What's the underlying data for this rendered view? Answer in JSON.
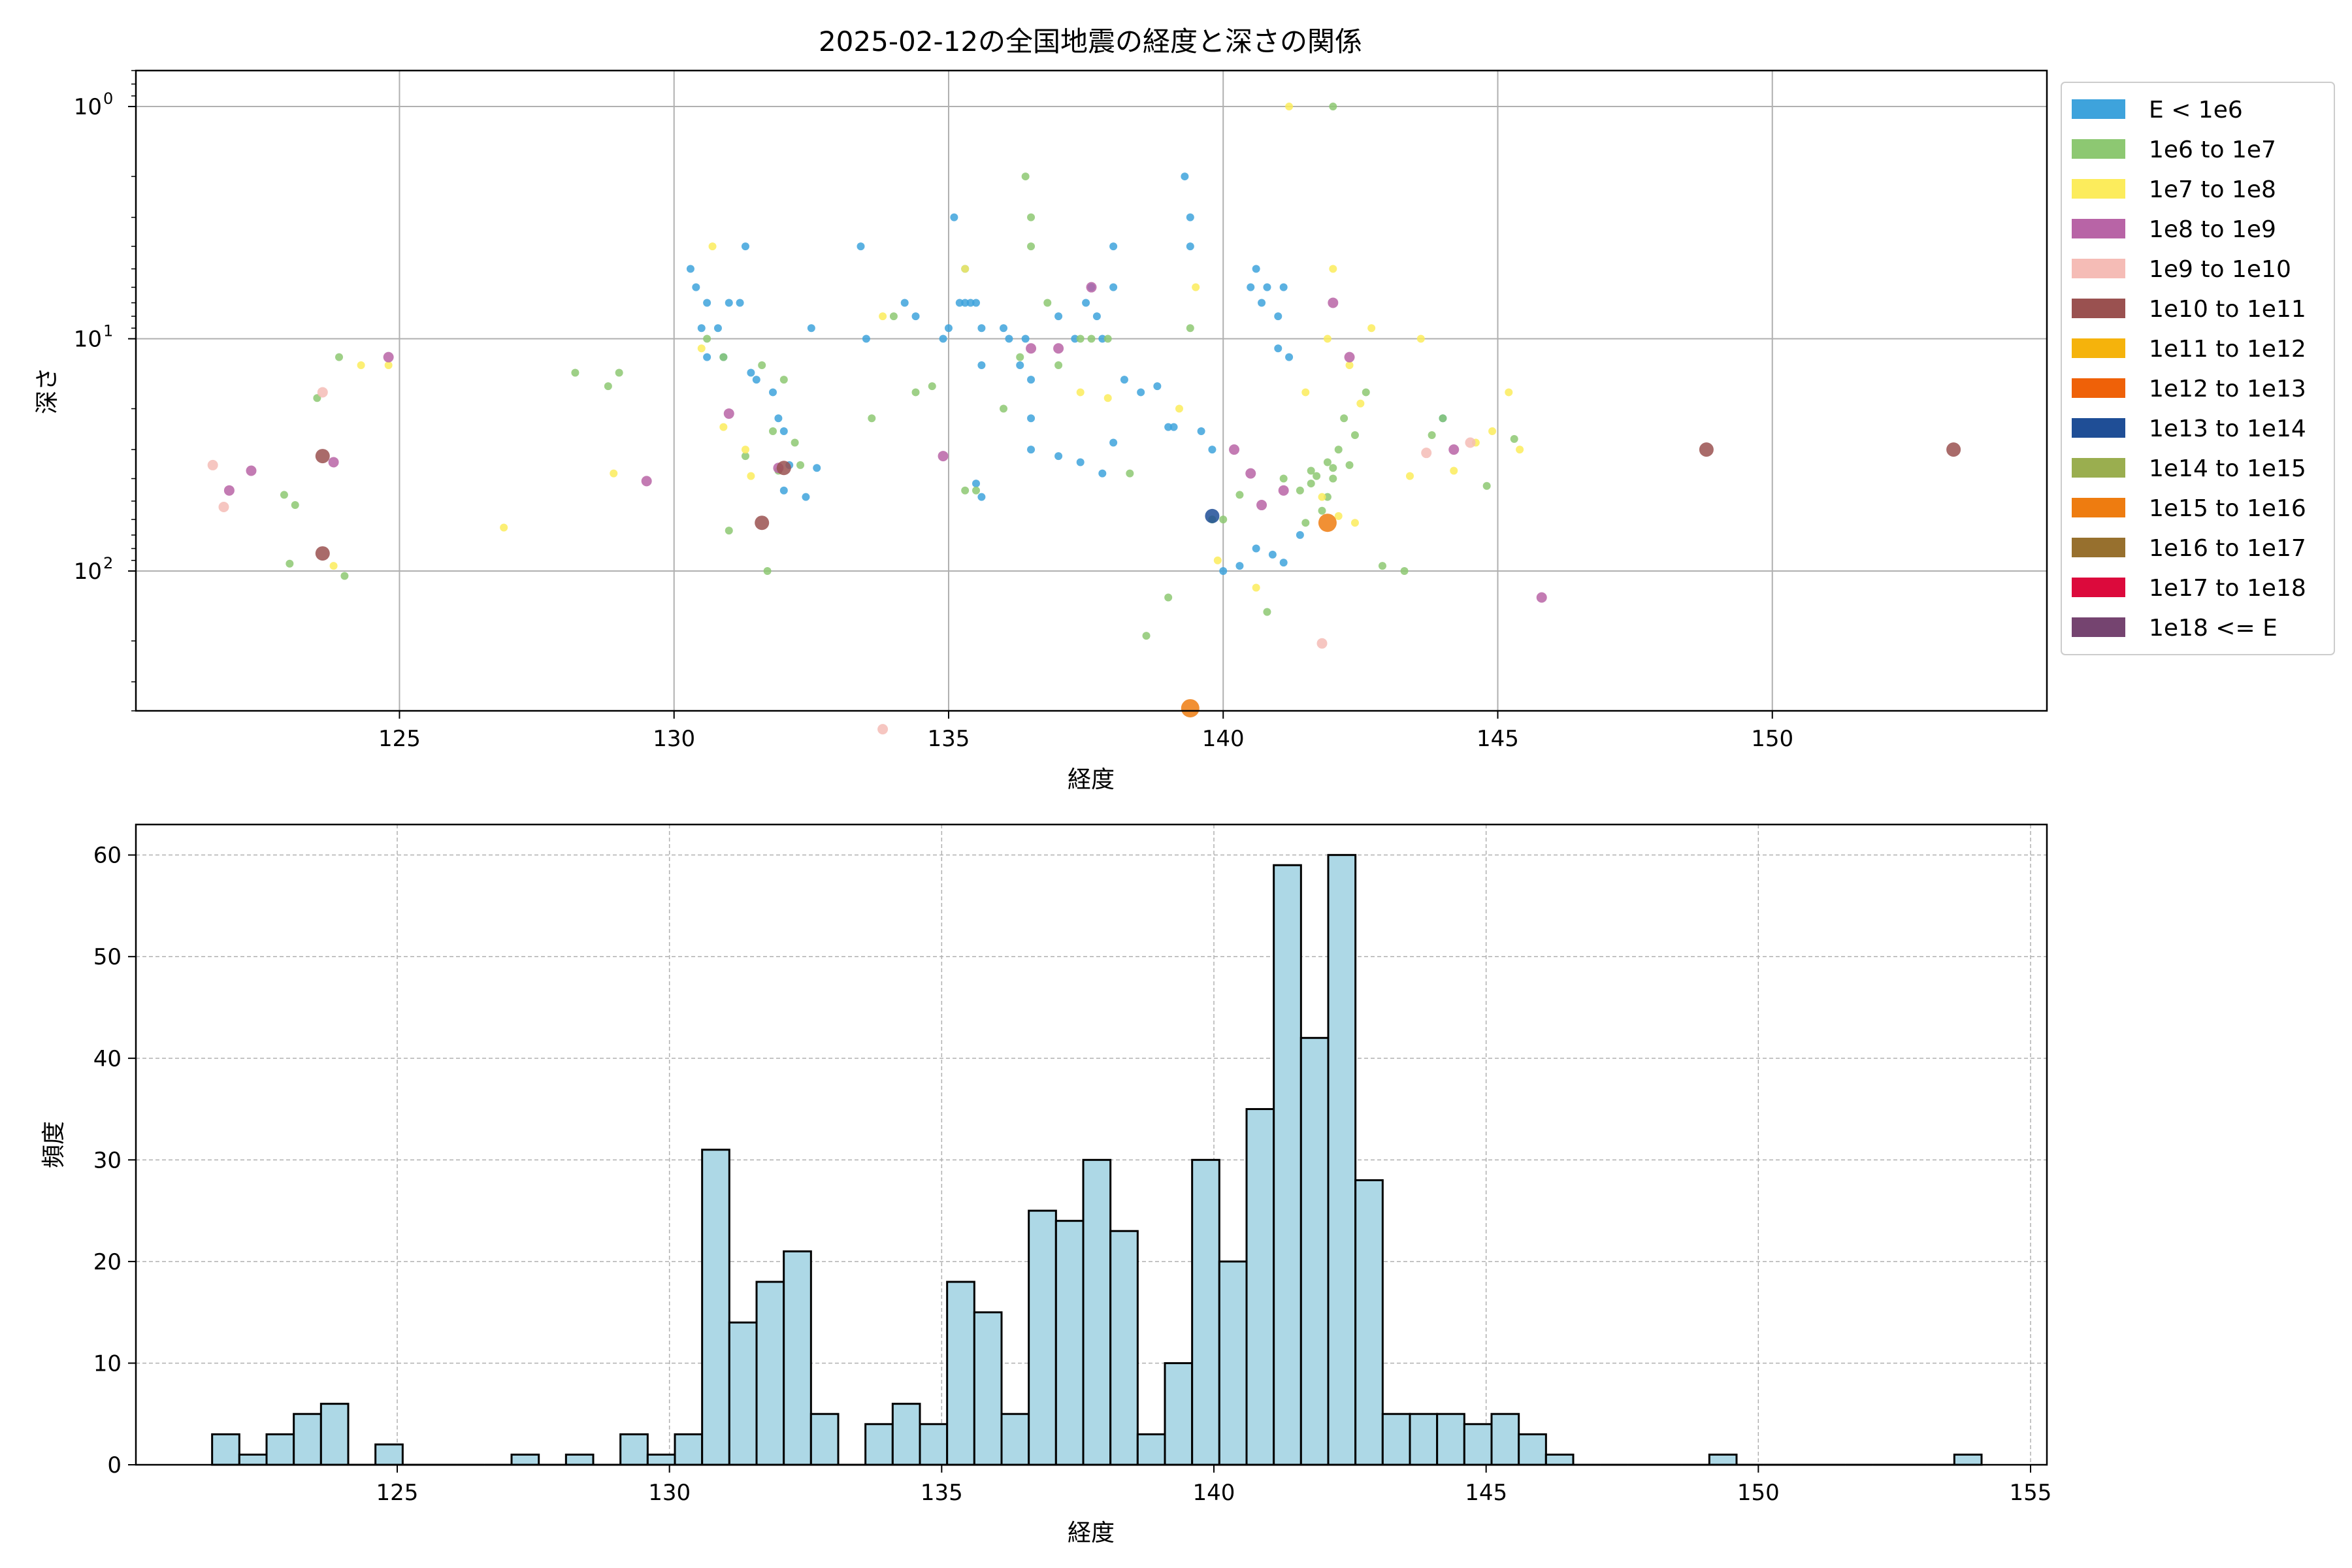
{
  "chart_data": [
    {
      "type": "scatter",
      "title": "2025-02-12の全国地震の経度と深さの関係",
      "xlabel": "経度",
      "ylabel": "深さ",
      "xlim": [
        120.2,
        155.0
      ],
      "ylim": [
        400,
        0.7
      ],
      "y_scale": "log",
      "y_inverted": true,
      "grid": true,
      "legend_position": "outside-right",
      "x_ticks": [
        125,
        130,
        135,
        140,
        145,
        150
      ],
      "y_ticks": [
        {
          "value": 1,
          "label": "10",
          "exp": "0"
        },
        {
          "value": 10,
          "label": "10",
          "exp": "1"
        },
        {
          "value": 100,
          "label": "10",
          "exp": "2"
        }
      ],
      "legend": [
        {
          "label": "E < 1e6",
          "color": "#3ea3dc"
        },
        {
          "label": "1e6 to 1e7",
          "color": "#8dc872"
        },
        {
          "label": "1e7 to 1e8",
          "color": "#fcec5c"
        },
        {
          "label": "1e8 to 1e9",
          "color": "#b864a6"
        },
        {
          "label": "1e9 to 1e10",
          "color": "#f5bcb6"
        },
        {
          "label": "1e10 to 1e11",
          "color": "#9a5150"
        },
        {
          "label": "1e11 to 1e12",
          "color": "#f5b30c"
        },
        {
          "label": "1e12 to 1e13",
          "color": "#ef6108"
        },
        {
          "label": "1e13 to 1e14",
          "color": "#1f4e96"
        },
        {
          "label": "1e14 to 1e15",
          "color": "#9aae4f"
        },
        {
          "label": "1e15 to 1e16",
          "color": "#ee7c10"
        },
        {
          "label": "1e16 to 1e17",
          "color": "#97702e"
        },
        {
          "label": "1e17 to 1e18",
          "color": "#dc0a3c"
        },
        {
          "label": "1e18 <= E",
          "color": "#754470"
        }
      ],
      "series": [
        {
          "class": 0,
          "points": [
            [
              130.3,
              5
            ],
            [
              130.4,
              6
            ],
            [
              130.6,
              7
            ],
            [
              130.5,
              9
            ],
            [
              130.8,
              9
            ],
            [
              131.0,
              7
            ],
            [
              131.2,
              7
            ],
            [
              131.3,
              4
            ],
            [
              130.6,
              12
            ],
            [
              130.9,
              12
            ],
            [
              131.4,
              14
            ],
            [
              131.5,
              15
            ],
            [
              131.8,
              17
            ],
            [
              131.9,
              22
            ],
            [
              132.0,
              25
            ],
            [
              132.1,
              35
            ],
            [
              132.4,
              48
            ],
            [
              132.6,
              36
            ],
            [
              132.0,
              45
            ],
            [
              132.5,
              9
            ],
            [
              133.4,
              4
            ],
            [
              133.5,
              10
            ],
            [
              134.2,
              7
            ],
            [
              134.4,
              8
            ],
            [
              134.9,
              10
            ],
            [
              135.0,
              9
            ],
            [
              135.1,
              3
            ],
            [
              135.2,
              7
            ],
            [
              135.3,
              7
            ],
            [
              135.4,
              7
            ],
            [
              135.3,
              5
            ],
            [
              135.5,
              7
            ],
            [
              135.6,
              9
            ],
            [
              135.6,
              13
            ],
            [
              136.0,
              9
            ],
            [
              136.1,
              10
            ],
            [
              136.3,
              13
            ],
            [
              136.4,
              10
            ],
            [
              136.5,
              15
            ],
            [
              136.5,
              30
            ],
            [
              137.0,
              8
            ],
            [
              137.3,
              10
            ],
            [
              137.5,
              7
            ],
            [
              137.6,
              6
            ],
            [
              137.7,
              8
            ],
            [
              137.8,
              10
            ],
            [
              138.0,
              6
            ],
            [
              138.0,
              4
            ],
            [
              138.2,
              15
            ],
            [
              138.5,
              17
            ],
            [
              138.8,
              16
            ],
            [
              139.0,
              24
            ],
            [
              139.1,
              24
            ],
            [
              139.3,
              2
            ],
            [
              139.4,
              3
            ],
            [
              139.4,
              4
            ],
            [
              139.6,
              25
            ],
            [
              139.8,
              30
            ],
            [
              140.0,
              100
            ],
            [
              140.3,
              95
            ],
            [
              140.5,
              6
            ],
            [
              140.6,
              5
            ],
            [
              140.7,
              7
            ],
            [
              140.8,
              6
            ],
            [
              141.0,
              8
            ],
            [
              141.1,
              6
            ],
            [
              141.0,
              11
            ],
            [
              141.2,
              12
            ],
            [
              141.4,
              70
            ],
            [
              140.6,
              80
            ],
            [
              140.9,
              85
            ],
            [
              141.1,
              92
            ],
            [
              144.0,
              22
            ],
            [
              135.5,
              42
            ],
            [
              135.6,
              48
            ],
            [
              136.5,
              22
            ],
            [
              137.0,
              32
            ],
            [
              137.4,
              34
            ],
            [
              137.8,
              38
            ],
            [
              138.0,
              28
            ]
          ]
        },
        {
          "class": 1,
          "points": [
            [
              122.9,
              47
            ],
            [
              123.0,
              93
            ],
            [
              123.1,
              52
            ],
            [
              123.5,
              18
            ],
            [
              123.9,
              12
            ],
            [
              124.0,
              105
            ],
            [
              128.2,
              14
            ],
            [
              128.8,
              16
            ],
            [
              129.0,
              14
            ],
            [
              130.6,
              10
            ],
            [
              130.9,
              12
            ],
            [
              131.0,
              67
            ],
            [
              131.3,
              32
            ],
            [
              131.6,
              13
            ],
            [
              131.7,
              100
            ],
            [
              131.8,
              25
            ],
            [
              131.9,
              37
            ],
            [
              132.0,
              15
            ],
            [
              132.2,
              28
            ],
            [
              132.3,
              35
            ],
            [
              133.6,
              22
            ],
            [
              134.0,
              8
            ],
            [
              134.4,
              17
            ],
            [
              134.7,
              16
            ],
            [
              135.3,
              45
            ],
            [
              135.5,
              45
            ],
            [
              136.0,
              20
            ],
            [
              136.3,
              12
            ],
            [
              136.4,
              2
            ],
            [
              136.5,
              3
            ],
            [
              136.8,
              7
            ],
            [
              137.0,
              13
            ],
            [
              137.4,
              10
            ],
            [
              137.6,
              10
            ],
            [
              137.9,
              10
            ],
            [
              138.3,
              38
            ],
            [
              138.6,
              190
            ],
            [
              139.0,
              130
            ],
            [
              139.4,
              9
            ],
            [
              139.8,
              60
            ],
            [
              140.0,
              60
            ],
            [
              140.3,
              47
            ],
            [
              140.8,
              150
            ],
            [
              141.1,
              40
            ],
            [
              141.4,
              45
            ],
            [
              141.6,
              42
            ],
            [
              141.8,
              55
            ],
            [
              141.9,
              48
            ],
            [
              142.0,
              40
            ],
            [
              142.1,
              30
            ],
            [
              142.2,
              22
            ],
            [
              142.4,
              26
            ],
            [
              142.6,
              17
            ],
            [
              142.9,
              95
            ],
            [
              143.3,
              100
            ],
            [
              143.8,
              26
            ],
            [
              144.0,
              22
            ],
            [
              144.8,
              43
            ],
            [
              145.3,
              27
            ],
            [
              141.6,
              37
            ],
            [
              141.7,
              39
            ],
            [
              142.0,
              36
            ],
            [
              141.5,
              62
            ],
            [
              141.9,
              34
            ],
            [
              142.3,
              35
            ],
            [
              142.0,
              1.0
            ],
            [
              136.5,
              4
            ]
          ]
        },
        {
          "class": 2,
          "points": [
            [
              123.8,
              95
            ],
            [
              124.3,
              13
            ],
            [
              124.8,
              13
            ],
            [
              126.9,
              65
            ],
            [
              128.9,
              38
            ],
            [
              130.5,
              11
            ],
            [
              130.7,
              4
            ],
            [
              130.9,
              24
            ],
            [
              131.3,
              30
            ],
            [
              131.4,
              39
            ],
            [
              133.8,
              8
            ],
            [
              135.3,
              5
            ],
            [
              137.4,
              17
            ],
            [
              137.9,
              18
            ],
            [
              139.2,
              20
            ],
            [
              139.5,
              6
            ],
            [
              139.9,
              90
            ],
            [
              140.6,
              118
            ],
            [
              141.2,
              1.0
            ],
            [
              141.5,
              17
            ],
            [
              141.9,
              10
            ],
            [
              142.0,
              5
            ],
            [
              142.3,
              13
            ],
            [
              142.5,
              19
            ],
            [
              142.7,
              9
            ],
            [
              143.4,
              39
            ],
            [
              143.6,
              10
            ],
            [
              144.2,
              37
            ],
            [
              144.6,
              28
            ],
            [
              144.9,
              25
            ],
            [
              145.2,
              17
            ],
            [
              145.4,
              30
            ],
            [
              141.8,
              48
            ],
            [
              142.1,
              58
            ],
            [
              142.4,
              62
            ]
          ]
        },
        {
          "class": 3,
          "points": [
            [
              121.9,
              45
            ],
            [
              122.3,
              37
            ],
            [
              123.8,
              34
            ],
            [
              124.8,
              12
            ],
            [
              129.5,
              41
            ],
            [
              131.0,
              21
            ],
            [
              131.9,
              36
            ],
            [
              134.9,
              32
            ],
            [
              136.5,
              11
            ],
            [
              137.0,
              11
            ],
            [
              137.6,
              6
            ],
            [
              140.2,
              30
            ],
            [
              140.5,
              38
            ],
            [
              140.7,
              52
            ],
            [
              141.1,
              45
            ],
            [
              142.0,
              7
            ],
            [
              142.3,
              12
            ],
            [
              144.2,
              30
            ],
            [
              145.8,
              130
            ]
          ]
        },
        {
          "class": 4,
          "points": [
            [
              121.6,
              35
            ],
            [
              121.8,
              53
            ],
            [
              123.6,
              17
            ],
            [
              133.8,
              480
            ],
            [
              141.8,
              205
            ],
            [
              144.5,
              28
            ],
            [
              143.7,
              31
            ]
          ]
        },
        {
          "class": 5,
          "points": [
            [
              123.6,
              32
            ],
            [
              123.6,
              84
            ],
            [
              131.6,
              62
            ],
            [
              132.0,
              36
            ],
            [
              148.8,
              30
            ],
            [
              153.3,
              30
            ]
          ]
        },
        {
          "class": 8,
          "points": [
            [
              139.8,
              58
            ]
          ]
        },
        {
          "class": 10,
          "points": [
            [
              139.4,
              390
            ],
            [
              141.9,
              62
            ]
          ]
        }
      ]
    },
    {
      "type": "bar",
      "title": "",
      "xlabel": "経度",
      "ylabel": "頻度",
      "xlim": [
        120.2,
        155.3
      ],
      "ylim": [
        0,
        63
      ],
      "grid": true,
      "bar_color": "#add8e6",
      "x_ticks": [
        125,
        130,
        135,
        140,
        145,
        150,
        155
      ],
      "y_ticks": [
        0,
        10,
        20,
        30,
        40,
        50,
        60
      ],
      "bin_start": 121.6,
      "bin_width": 0.5,
      "values": [
        3,
        1,
        3,
        5,
        6,
        0,
        2,
        0,
        0,
        0,
        0,
        1,
        0,
        1,
        0,
        3,
        1,
        3,
        31,
        14,
        18,
        21,
        5,
        0,
        4,
        6,
        4,
        18,
        15,
        5,
        25,
        24,
        30,
        23,
        3,
        10,
        30,
        20,
        35,
        59,
        42,
        60,
        28,
        5,
        5,
        5,
        4,
        5,
        3,
        1,
        0,
        0,
        0,
        0,
        0,
        1,
        0,
        0,
        0,
        0,
        0,
        0,
        0,
        0,
        1
      ]
    }
  ]
}
